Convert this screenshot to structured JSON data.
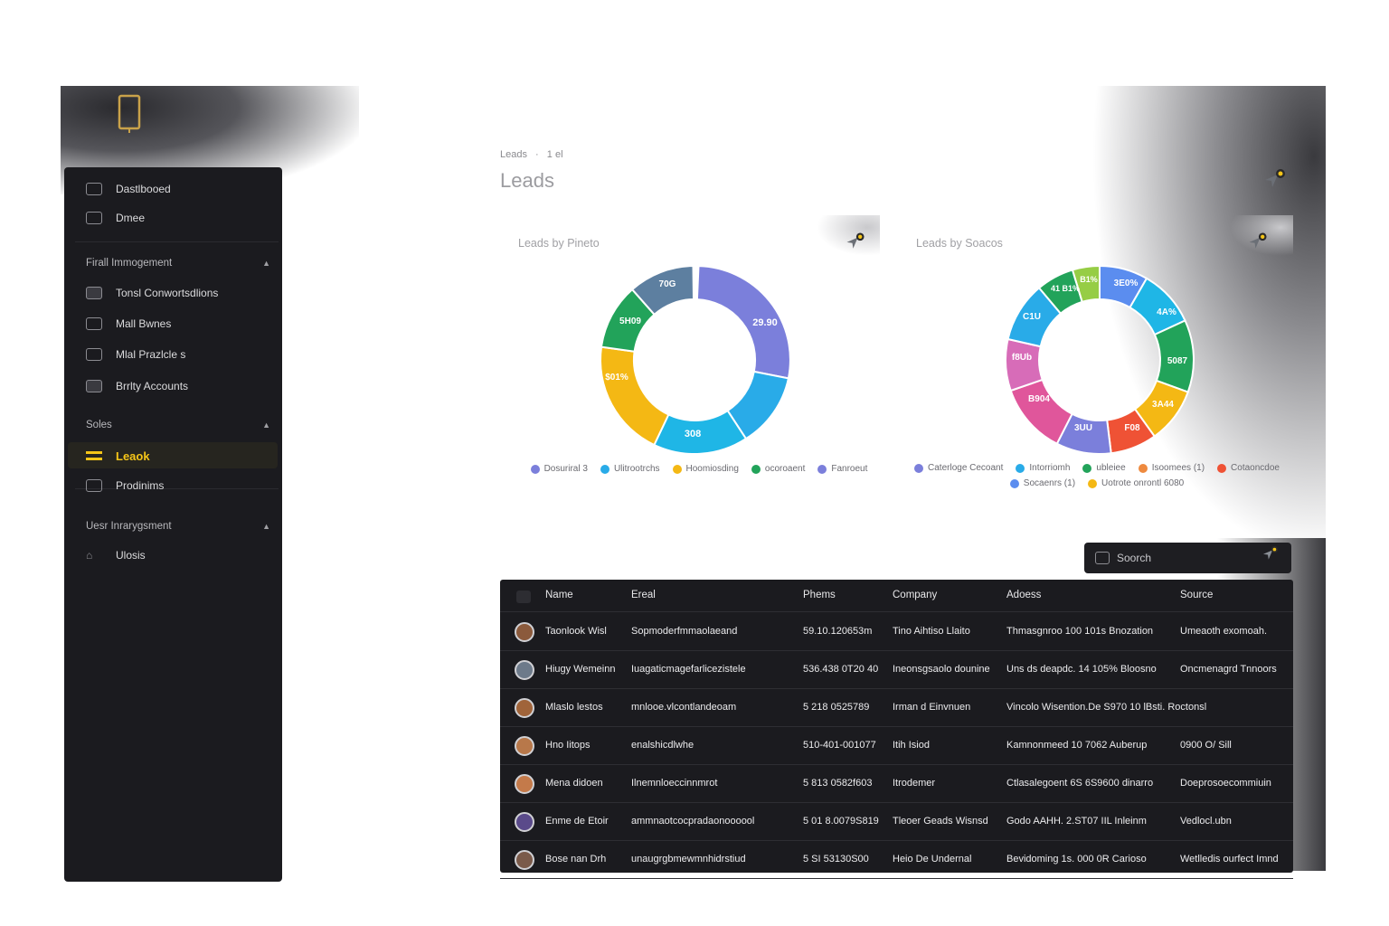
{
  "breadcrumb": {
    "parent": "Leads",
    "sep": "·",
    "current": "1 el"
  },
  "page_title": "Leads",
  "sidebar": {
    "top_items": [
      {
        "label": "Dastlbooed"
      },
      {
        "label": "Dmee"
      }
    ],
    "sections": [
      {
        "title": "Firall Immogement",
        "items": [
          {
            "label": "Tonsl Conwortsdlions"
          },
          {
            "label": "Mall Bwnes"
          },
          {
            "label": "Mlal Prazlcle s"
          },
          {
            "label": "Brrlty Accounts"
          }
        ]
      },
      {
        "title": "Soles",
        "items": [
          {
            "label": "Leaok"
          },
          {
            "label": "Prodinims"
          }
        ]
      },
      {
        "title": "Uesr Inrarygsment",
        "items": [
          {
            "label": "Ulosis"
          }
        ]
      }
    ]
  },
  "cards": [
    {
      "title": "Leads by Pineto",
      "slice_labels": [
        "29.90",
        "308",
        "$01%",
        "5H09",
        "70G"
      ],
      "legend": [
        "Dosuriral 3",
        "Ulitrootrchs",
        "Hoomiosding",
        "ocoroaent",
        "Fanroeut"
      ]
    },
    {
      "title": "Leads by Soacos",
      "slice_labels": [
        "3E0%",
        "4A%",
        "5087",
        "3A44",
        "F08",
        "3UU",
        "B904",
        "f8Ub",
        "C1U",
        "41 B1%",
        "B1%"
      ],
      "legend": [
        "Caterloge Cecoant",
        "Intorriomh",
        "ubleiee",
        "Isoomees (1)",
        "Cotaoncdoe",
        "Socaenrs (1)",
        "Uotrote onrontl 6080"
      ]
    }
  ],
  "search": {
    "placeholder": "Soorch"
  },
  "table": {
    "headers": [
      "Name",
      "Ereal",
      "Phems",
      "Company",
      "Adoess",
      "Source"
    ],
    "rows": [
      [
        "Taonlook Wisl",
        "Sopmoderfmmaolaeand",
        "59.10.120653m",
        "Tino Aihtiso Llaito",
        "Thmasgnroo 100 101s Bnozation",
        "Umeaoth exomoah."
      ],
      [
        "Hiugy Wemeinn",
        "Iuagaticmagefarlicezistele",
        "536.438 0T20 40",
        "Ineonsgsaolo dounine",
        "Uns ds deapdc. 14 105% Bloosno",
        "Oncmenagrd Tnnoors"
      ],
      [
        "Mlaslo lestos",
        "mnlooe.vlcontlandeoam",
        "5 218 0525789",
        "Irman d Einvnuen",
        "Vincolo Wisention.De S970 10 lBsti. Roctonsl",
        ""
      ],
      [
        "Hno Iitops",
        "enalshicdlwhe",
        "510-401-001077",
        "Itih Isiod",
        "Kamnonmeed 10 7062 Auberup",
        "0900 O/ Sill"
      ],
      [
        "Mena didoen",
        "Ilnemnloeccinnmrot",
        "5 813 0582f603",
        "Itrodemer",
        "Ctlasalegoent 6S 6S9600 dinarro",
        "Doeprosoecommiuin"
      ],
      [
        "Enme de Etoir",
        "ammnaotcocpradaonoooool",
        "5 01 8.0079S819",
        "Tleoer Geads Wisnsd",
        "Godo AAHH. 2.ST07 IIL Inleinm",
        "Vedlocl.ubn"
      ],
      [
        "Bose nan Drh",
        "unaugrgbmewmnhidrstiud",
        "5 SI 53130S00",
        "Heio De Undernal",
        "Bevidoming 1s. 000 0R Carioso",
        "Wetlledis ourfect Imnd"
      ]
    ]
  },
  "colors": {
    "accent": "#f5c518",
    "sidebar_bg": "#1b1b1f",
    "slice_purple": "#7b7fdb",
    "slice_blue": "#29abe8",
    "slice_yellow": "#f4b814",
    "slice_green": "#22a35a",
    "slice_slate": "#5d7fa0",
    "slice_red": "#ef5235",
    "slice_pink": "#d76cb8",
    "slice_magenta": "#e0569b",
    "slice_lime": "#96cd45",
    "slice_cyan": "#1fb6e6",
    "slice_orange": "#ee8a3f"
  }
}
